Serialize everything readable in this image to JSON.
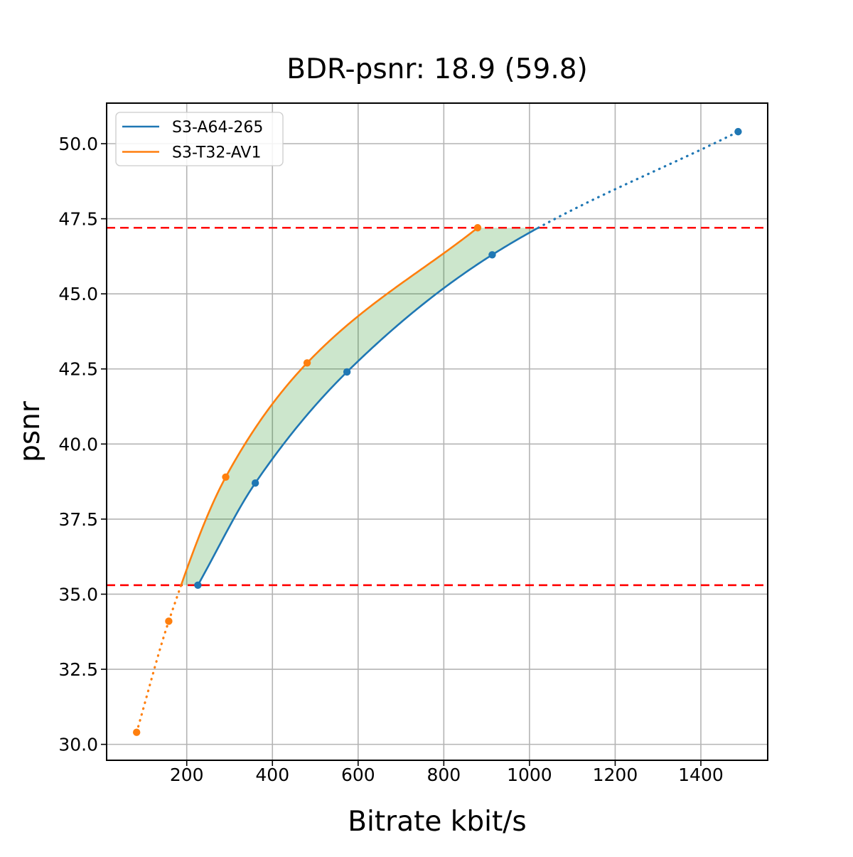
{
  "title": "BDR-psnr: 18.9 (59.8)",
  "chart_data": {
    "type": "line",
    "title": "BDR-psnr: 18.9 (59.8)",
    "xlabel": "Bitrate kbit/s",
    "ylabel": "psnr",
    "xlim": [
      13,
      1556
    ],
    "ylim": [
      29.47,
      51.35
    ],
    "xticks": [
      "200",
      "400",
      "600",
      "800",
      "1000",
      "1200",
      "1400"
    ],
    "yticks": [
      "30.0",
      "32.5",
      "35.0",
      "37.5",
      "40.0",
      "42.5",
      "45.0",
      "47.5",
      "50.0"
    ],
    "grid": true,
    "legend": {
      "position": "upper-left",
      "entries": [
        "S3-A64-265",
        "S3-T32-AV1"
      ]
    },
    "series": [
      {
        "name": "S3-A64-265",
        "color": "#1f77b4",
        "points": [
          [
            226,
            35.3
          ],
          [
            360,
            38.7
          ],
          [
            574,
            42.4
          ],
          [
            913,
            46.3
          ],
          [
            1487,
            50.4
          ]
        ],
        "solid_psnr_range": [
          35.3,
          47.2
        ]
      },
      {
        "name": "S3-T32-AV1",
        "color": "#ff7f0e",
        "points": [
          [
            83,
            30.4
          ],
          [
            158,
            34.1
          ],
          [
            291,
            38.9
          ],
          [
            481,
            42.7
          ],
          [
            879,
            47.2
          ]
        ],
        "solid_psnr_range": [
          35.3,
          47.2
        ]
      }
    ],
    "hlines": [
      {
        "y": 47.2,
        "color": "#ff0000",
        "style": "dashed"
      },
      {
        "y": 35.3,
        "color": "#ff0000",
        "style": "dashed"
      }
    ],
    "fill_between": {
      "color": "#008000",
      "opacity": 0.2,
      "psnr_range": [
        35.3,
        47.2
      ]
    }
  },
  "colors": {
    "background": "#ffffff",
    "grid": "#b4b4b4",
    "spine": "#000000",
    "legend_border": "#cccccc"
  }
}
